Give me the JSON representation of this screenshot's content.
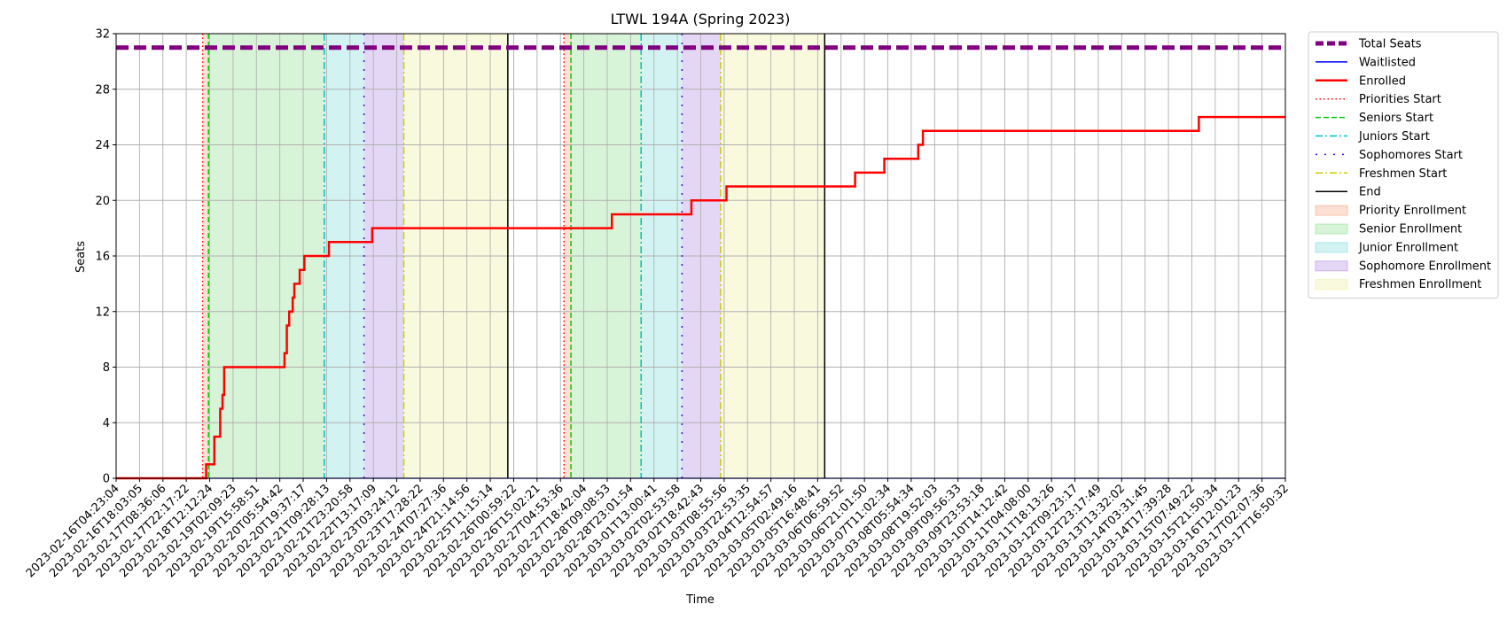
{
  "chart_data": {
    "type": "line",
    "title": "LTWL 194A (Spring 2023)",
    "xlabel": "Time",
    "ylabel": "Seats",
    "ylim": [
      0,
      32
    ],
    "yticks": [
      0,
      4,
      8,
      12,
      16,
      20,
      24,
      28,
      32
    ],
    "grid": true,
    "legend_position": "outside-right",
    "x_tick_labels": [
      "2023-02-16T04:23:04",
      "2023-02-16T18:03:05",
      "2023-02-17T08:36:06",
      "2023-02-17T22:17:22",
      "2023-02-18T12:12:24",
      "2023-02-19T02:09:23",
      "2023-02-19T15:58:51",
      "2023-02-20T05:54:42",
      "2023-02-20T19:37:17",
      "2023-02-21T09:28:13",
      "2023-02-21T23:20:58",
      "2023-02-22T13:17:09",
      "2023-02-23T03:24:12",
      "2023-02-23T17:28:22",
      "2023-02-24T07:27:36",
      "2023-02-24T21:14:56",
      "2023-02-25T11:15:14",
      "2023-02-26T00:59:22",
      "2023-02-26T15:02:21",
      "2023-02-27T04:53:36",
      "2023-02-27T18:42:04",
      "2023-02-28T09:08:53",
      "2023-02-28T23:01:54",
      "2023-03-01T13:00:41",
      "2023-03-02T02:53:58",
      "2023-03-02T18:42:43",
      "2023-03-03T08:55:56",
      "2023-03-03T22:53:35",
      "2023-03-04T12:54:57",
      "2023-03-05T02:49:16",
      "2023-03-05T16:48:41",
      "2023-03-06T06:59:52",
      "2023-03-06T21:01:50",
      "2023-03-07T11:02:34",
      "2023-03-08T05:54:34",
      "2023-03-08T19:52:03",
      "2023-03-09T09:56:33",
      "2023-03-09T23:53:18",
      "2023-03-10T14:12:42",
      "2023-03-11T04:08:00",
      "2023-03-11T18:13:26",
      "2023-03-12T09:23:17",
      "2023-03-12T23:17:49",
      "2023-03-13T13:32:02",
      "2023-03-14T03:31:45",
      "2023-03-14T17:39:28",
      "2023-03-15T07:49:22",
      "2023-03-15T21:50:34",
      "2023-03-16T12:01:23",
      "2023-03-17T02:07:36",
      "2023-03-17T16:50:32"
    ],
    "x_index_range": [
      0,
      50
    ],
    "series": [
      {
        "name": "Total Seats",
        "color": "#800080",
        "style": "dashed-thick",
        "points": [
          [
            0,
            31
          ],
          [
            50,
            31
          ]
        ]
      },
      {
        "name": "Waitlisted",
        "color": "#0000ff",
        "style": "solid",
        "points": [
          [
            0,
            0
          ],
          [
            50,
            0
          ]
        ]
      },
      {
        "name": "Enrolled",
        "color": "#ff0000",
        "style": "step",
        "points": [
          [
            0,
            0
          ],
          [
            3.85,
            0
          ],
          [
            3.85,
            1
          ],
          [
            4.2,
            1
          ],
          [
            4.2,
            3
          ],
          [
            4.45,
            3
          ],
          [
            4.45,
            5
          ],
          [
            4.55,
            5
          ],
          [
            4.55,
            6
          ],
          [
            4.62,
            6
          ],
          [
            4.62,
            8
          ],
          [
            7.2,
            8
          ],
          [
            7.2,
            9
          ],
          [
            7.3,
            9
          ],
          [
            7.3,
            11
          ],
          [
            7.4,
            11
          ],
          [
            7.4,
            12
          ],
          [
            7.55,
            12
          ],
          [
            7.55,
            13
          ],
          [
            7.62,
            13
          ],
          [
            7.62,
            14
          ],
          [
            7.85,
            14
          ],
          [
            7.85,
            15
          ],
          [
            8.05,
            15
          ],
          [
            8.05,
            16
          ],
          [
            9.1,
            16
          ],
          [
            9.1,
            17
          ],
          [
            10.95,
            17
          ],
          [
            10.95,
            18
          ],
          [
            21.2,
            18
          ],
          [
            21.2,
            19
          ],
          [
            24.6,
            19
          ],
          [
            24.6,
            20
          ],
          [
            26.1,
            20
          ],
          [
            26.1,
            21
          ],
          [
            31.6,
            21
          ],
          [
            31.6,
            22
          ],
          [
            32.85,
            22
          ],
          [
            32.85,
            23
          ],
          [
            34.3,
            23
          ],
          [
            34.3,
            24
          ],
          [
            34.5,
            24
          ],
          [
            34.5,
            25
          ],
          [
            46.3,
            25
          ],
          [
            46.3,
            26
          ],
          [
            50,
            26
          ]
        ]
      }
    ],
    "phase_lines": [
      {
        "name": "Priorities Start",
        "color": "#ff0000",
        "style": "dotted",
        "x": [
          3.7,
          19.15
        ]
      },
      {
        "name": "Seniors Start",
        "color": "#00cc00",
        "style": "dashed",
        "x": [
          3.95,
          19.45
        ]
      },
      {
        "name": "Juniors Start",
        "color": "#00bfbf",
        "style": "dashdot",
        "x": [
          8.9,
          22.45
        ]
      },
      {
        "name": "Sophomores Start",
        "color": "#5500dd",
        "style": "loose-dashdot",
        "x": [
          10.6,
          24.2
        ]
      },
      {
        "name": "Freshmen Start",
        "color": "#cccc00",
        "style": "dashdot",
        "x": [
          12.3,
          25.85
        ]
      },
      {
        "name": "End",
        "color": "#000000",
        "style": "solid",
        "x": [
          16.75,
          30.3
        ]
      }
    ],
    "phase_regions": [
      {
        "name": "Priority Enrollment",
        "color": "#f4a582",
        "spans": [
          [
            3.7,
            3.95
          ],
          [
            19.15,
            19.45
          ]
        ]
      },
      {
        "name": "Senior Enrollment",
        "color": "#90e090",
        "spans": [
          [
            3.95,
            8.9
          ],
          [
            19.45,
            22.45
          ]
        ]
      },
      {
        "name": "Junior Enrollment",
        "color": "#80dede",
        "spans": [
          [
            8.9,
            10.6
          ],
          [
            22.45,
            24.2
          ]
        ]
      },
      {
        "name": "Sophomore Enrollment",
        "color": "#b28ce6",
        "spans": [
          [
            10.6,
            12.3
          ],
          [
            24.2,
            25.85
          ]
        ]
      },
      {
        "name": "Freshmen Enrollment",
        "color": "#eeeea0",
        "spans": [
          [
            12.3,
            16.75
          ],
          [
            25.85,
            30.3
          ]
        ]
      }
    ],
    "legend": [
      {
        "label": "Total Seats",
        "kind": "line",
        "color": "#800080",
        "style": "dashed-thick"
      },
      {
        "label": "Waitlisted",
        "kind": "line",
        "color": "#0000ff",
        "style": "solid"
      },
      {
        "label": "Enrolled",
        "kind": "line",
        "color": "#ff0000",
        "style": "solid-thick"
      },
      {
        "label": "Priorities Start",
        "kind": "line",
        "color": "#ff0000",
        "style": "dotted"
      },
      {
        "label": "Seniors Start",
        "kind": "line",
        "color": "#00cc00",
        "style": "dashed"
      },
      {
        "label": "Juniors Start",
        "kind": "line",
        "color": "#00bfbf",
        "style": "dashdot"
      },
      {
        "label": "Sophomores Start",
        "kind": "line",
        "color": "#5500dd",
        "style": "loose-dashdot"
      },
      {
        "label": "Freshmen Start",
        "kind": "line",
        "color": "#cccc00",
        "style": "dashdot"
      },
      {
        "label": "End",
        "kind": "line",
        "color": "#000000",
        "style": "solid"
      },
      {
        "label": "Priority Enrollment",
        "kind": "patch",
        "color": "#f4a582"
      },
      {
        "label": "Senior Enrollment",
        "kind": "patch",
        "color": "#90e090"
      },
      {
        "label": "Junior Enrollment",
        "kind": "patch",
        "color": "#80dede"
      },
      {
        "label": "Sophomore Enrollment",
        "kind": "patch",
        "color": "#b28ce6"
      },
      {
        "label": "Freshmen Enrollment",
        "kind": "patch",
        "color": "#eeeea0"
      }
    ]
  }
}
